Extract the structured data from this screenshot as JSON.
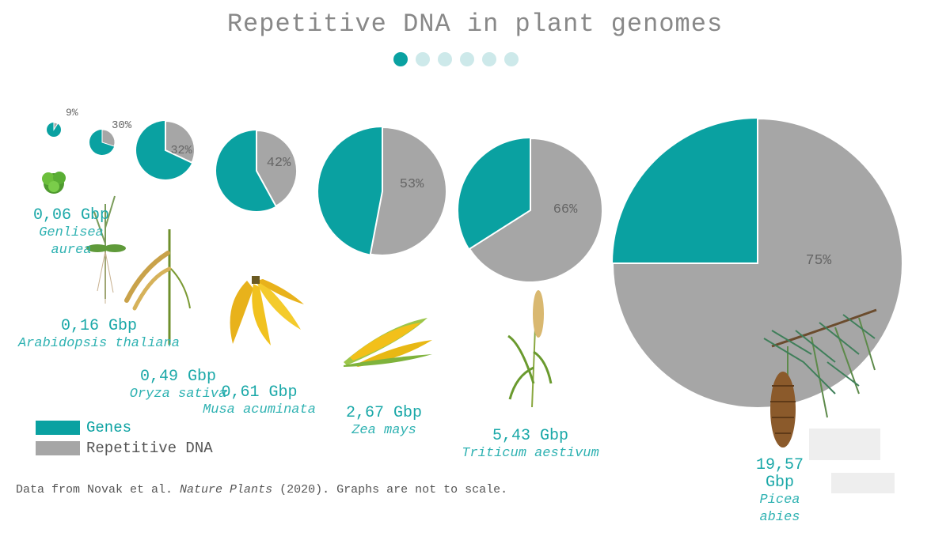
{
  "title": "Repetitive DNA in plant genomes",
  "pagination": {
    "total": 6,
    "active": 0,
    "active_color": "#0aa1a1",
    "inactive_color": "#cde9ea"
  },
  "colors": {
    "genes": "#0aa1a1",
    "repetitive": "#a6a6a6"
  },
  "legend": [
    {
      "label": "Genes",
      "color": "#0aa1a1"
    },
    {
      "label": "Repetitive DNA",
      "color": "#a6a6a6"
    }
  ],
  "chart_data": {
    "type": "pie",
    "title": "Repetitive DNA in plant genomes",
    "series_names": [
      "Genes",
      "Repetitive DNA"
    ],
    "items": [
      {
        "species": "Genlisea aurea",
        "genome_size": "0,06 Gbp",
        "repetitive_pct": 9,
        "label": "9%",
        "plant_icon": "lettuce-rosette-icon"
      },
      {
        "species": "Arabidopsis thaliana",
        "genome_size": "0,16 Gbp",
        "repetitive_pct": 30,
        "label": "30%",
        "plant_icon": "arabidopsis-icon"
      },
      {
        "species": "Oryza sativa",
        "genome_size": "0,49 Gbp",
        "repetitive_pct": 32,
        "label": "32%",
        "plant_icon": "rice-icon"
      },
      {
        "species": "Musa acuminata",
        "genome_size": "0,61 Gbp",
        "repetitive_pct": 42,
        "label": "42%",
        "plant_icon": "banana-icon"
      },
      {
        "species": "Zea mays",
        "genome_size": "2,67 Gbp",
        "repetitive_pct": 53,
        "label": "53%",
        "plant_icon": "corn-icon"
      },
      {
        "species": "Triticum aestivum",
        "genome_size": "5,43 Gbp",
        "repetitive_pct": 66,
        "label": "66%",
        "plant_icon": "wheat-icon"
      },
      {
        "species": "Picea abies",
        "genome_size": "19,57 Gbp",
        "repetitive_pct": 75,
        "label": "75%",
        "plant_icon": "spruce-icon"
      }
    ]
  },
  "note": {
    "prefix": "Data from Novak et al. ",
    "journal": "Nature Plants",
    "suffix": " (2020). Graphs are not to scale."
  }
}
